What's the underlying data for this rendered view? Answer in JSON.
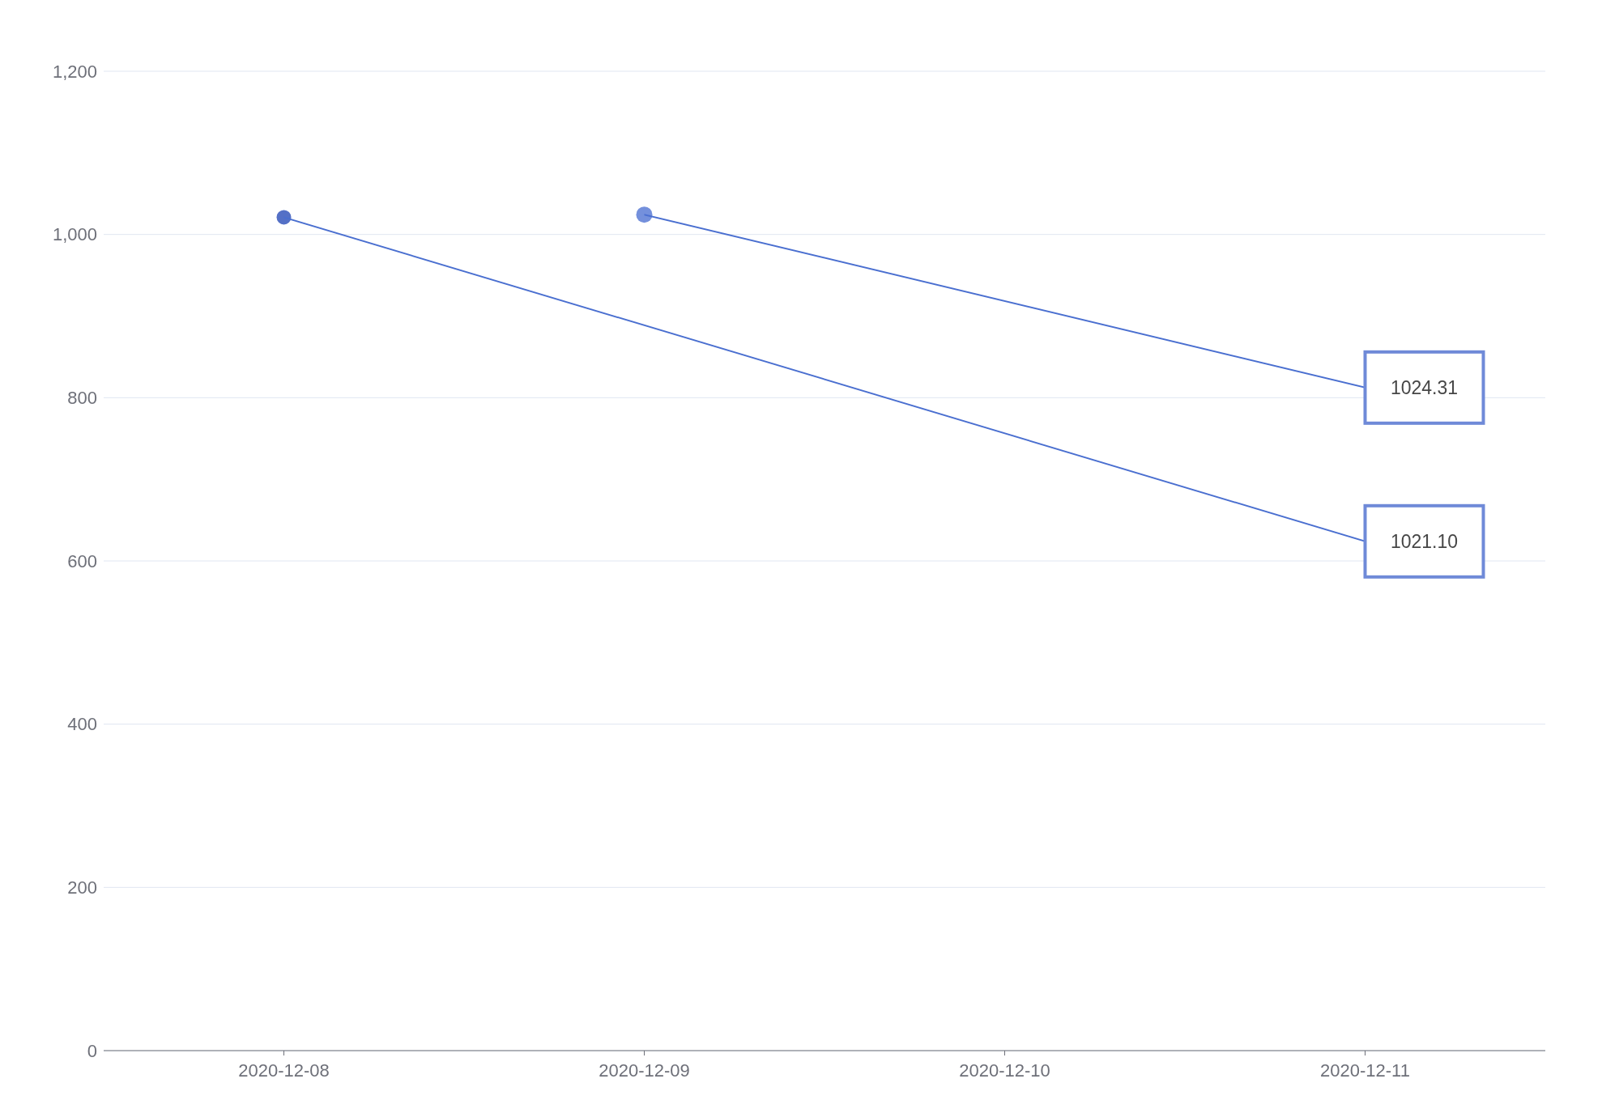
{
  "chart_data": {
    "type": "scatter",
    "categories": [
      "2020-12-08",
      "2020-12-09",
      "2020-12-10",
      "2020-12-11"
    ],
    "values": [
      1021.1,
      1024.31,
      null,
      null
    ],
    "colors": [
      "#5470c6",
      "#7490dc",
      "#5470c6",
      "#5470c6"
    ],
    "ylim": [
      0,
      1200
    ],
    "yticks": [
      {
        "value": 0,
        "label": "0"
      },
      {
        "value": 200,
        "label": "200"
      },
      {
        "value": 400,
        "label": "400"
      },
      {
        "value": 600,
        "label": "600"
      },
      {
        "value": 800,
        "label": "800"
      },
      {
        "value": 1000,
        "label": "1,000"
      },
      {
        "value": 1200,
        "label": "1,200"
      }
    ],
    "grid": "y",
    "marker": "circle",
    "annotations": [
      "1021.10",
      "1024.31"
    ]
  }
}
